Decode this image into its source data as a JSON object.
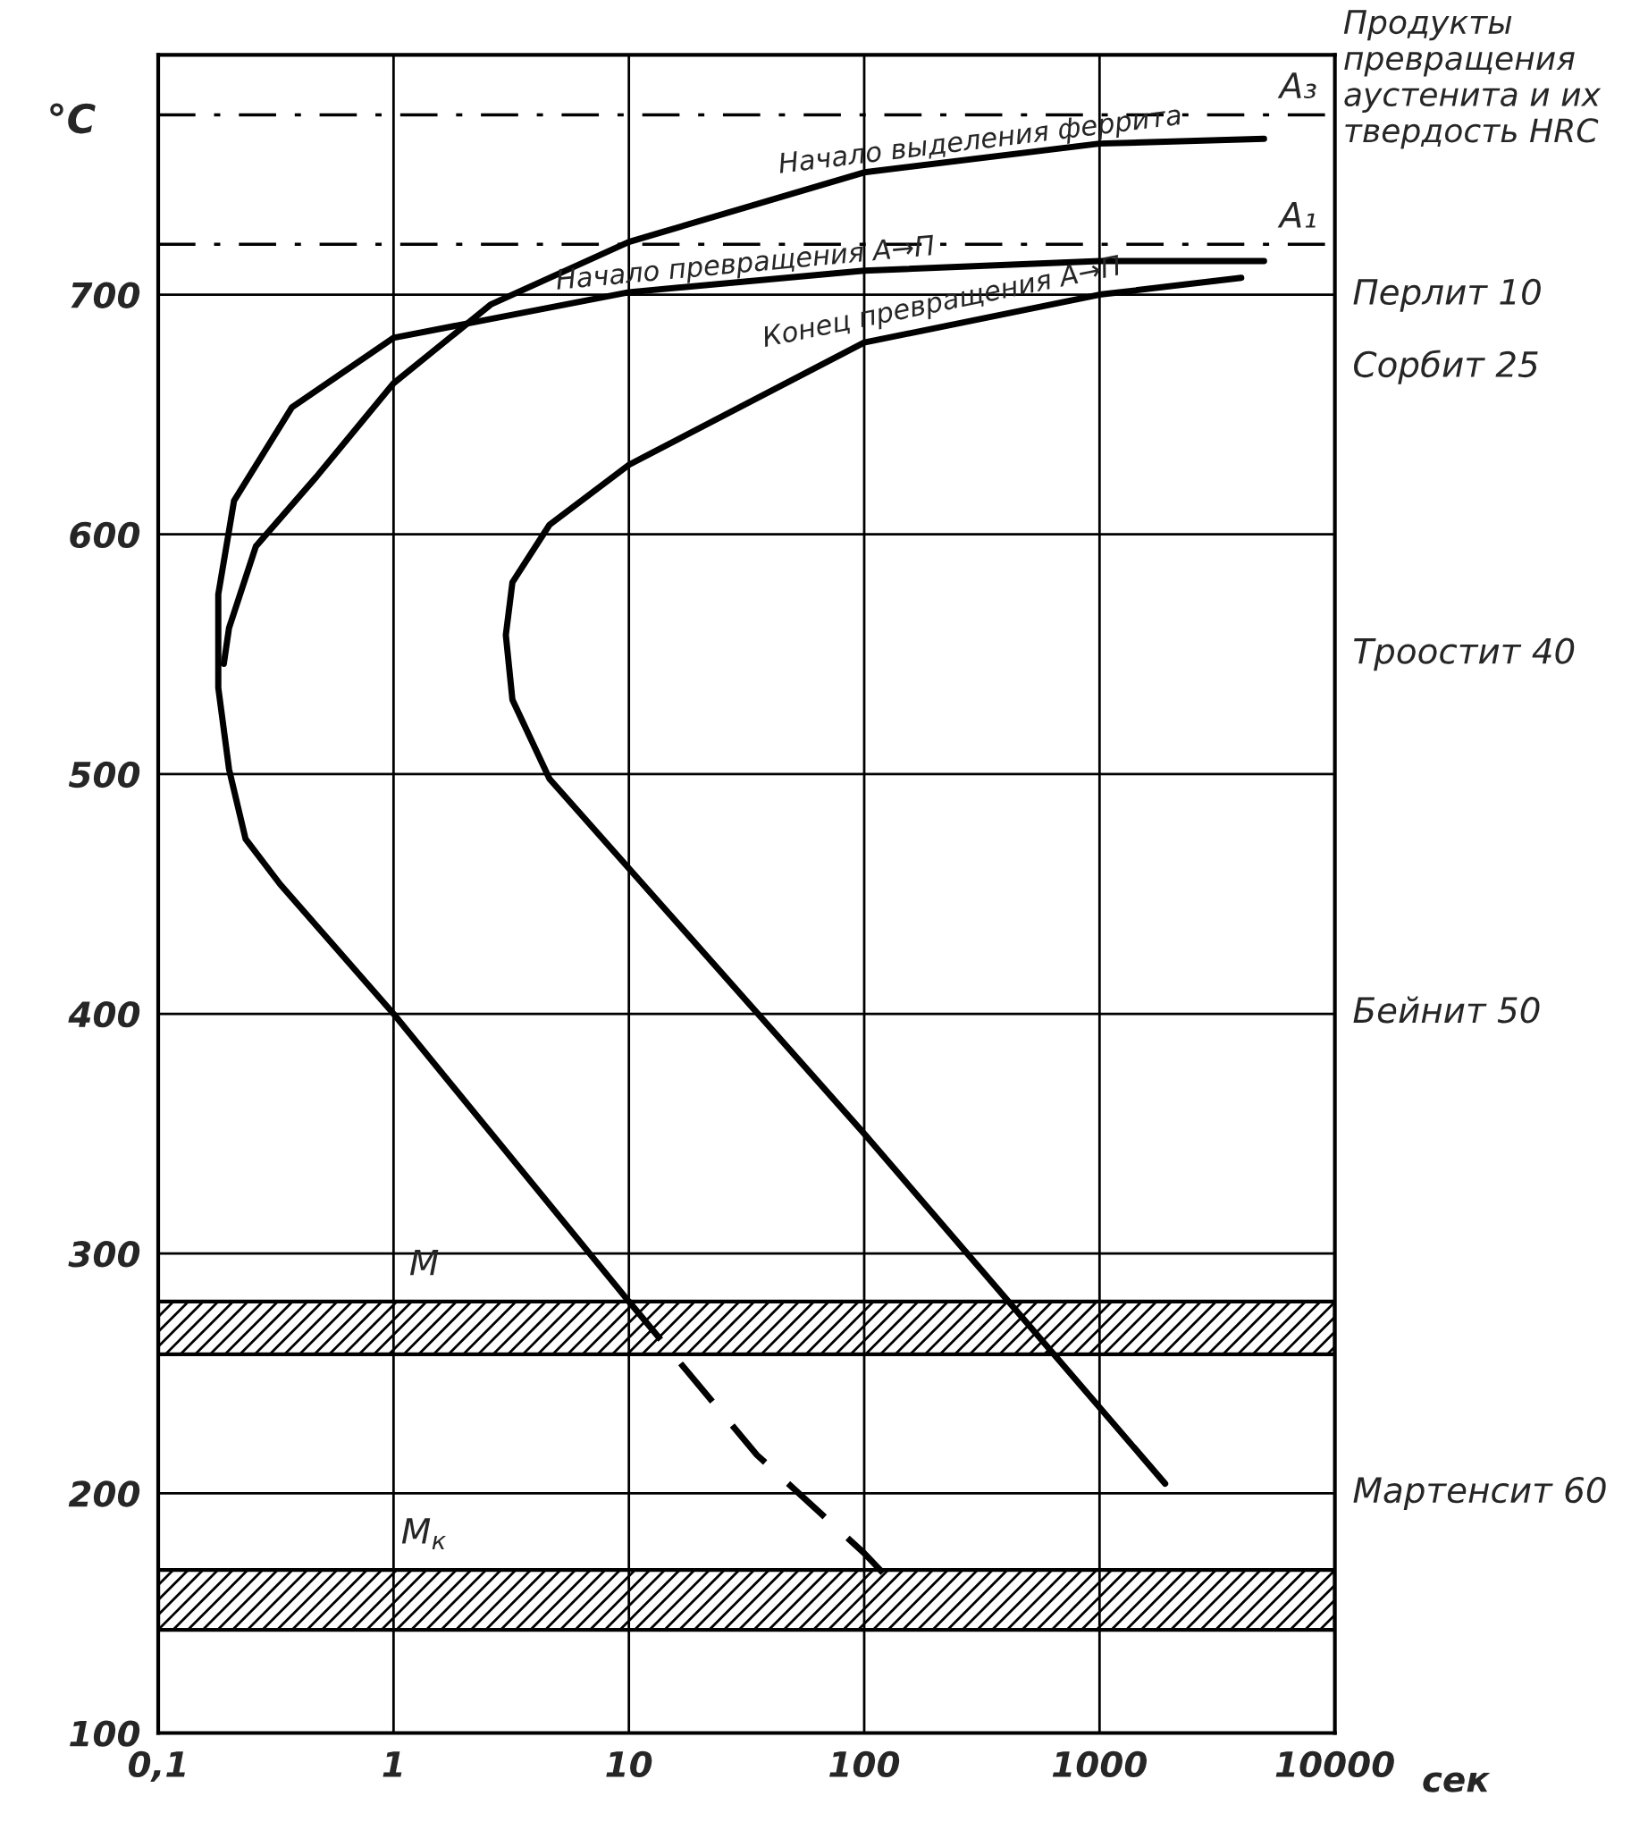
{
  "chart_data": {
    "type": "line",
    "title": "Продукты превращения аустенита и их твердость HRC",
    "xlabel": "сек",
    "ylabel": "°C",
    "log": "x",
    "xlim": [
      0.1,
      10000
    ],
    "ylim": [
      100,
      800
    ],
    "xticks": [
      {
        "value": 0.1,
        "label": "0,1"
      },
      1,
      10,
      100,
      1000,
      {
        "value": 10000,
        "label": "10000"
      }
    ],
    "yticks": [
      100,
      200,
      300,
      400,
      500,
      600,
      700
    ],
    "grid": true,
    "legend": false,
    "marker": "none",
    "series": [
      {
        "name": "Начало выделения феррита",
        "color": "#000000",
        "line_style": "solid",
        "x": [
          5000,
          1000,
          100,
          10,
          2.6,
          1,
          0.47,
          0.26,
          0.2,
          0.19
        ],
        "values": [
          765,
          763,
          751,
          722,
          696,
          663,
          624,
          595,
          561,
          546
        ]
      },
      {
        "name": "Начало превращения А→П",
        "color": "#000000",
        "line_style": "solid",
        "x": [
          5000,
          1000,
          100,
          10,
          1,
          0.37,
          0.21,
          0.18,
          0.18,
          0.2,
          0.235,
          0.33,
          1,
          10
        ],
        "values": [
          714,
          714,
          710,
          701,
          682,
          653,
          614,
          575,
          536,
          502,
          473,
          454,
          400,
          280
        ]
      },
      {
        "color": "#000000",
        "line_style": "dashed",
        "x": [
          10,
          35,
          100,
          125
        ],
        "values": [
          280,
          216,
          175,
          165
        ]
      },
      {
        "name": "Конец превращения А→П",
        "color": "#000000",
        "line_style": "solid",
        "x": [
          4000,
          1000,
          100,
          10,
          4.6,
          3.2,
          3.0,
          3.2,
          4.6,
          100,
          1900
        ],
        "values": [
          707,
          700,
          680,
          629,
          604,
          580,
          558,
          531,
          498,
          350,
          204
        ]
      }
    ],
    "ref_lines": [
      {
        "axis": "y",
        "value": 775,
        "label": "A₃",
        "line_style": "dashed",
        "color": "#000000"
      },
      {
        "axis": "y",
        "value": 721,
        "label": "A₁",
        "line_style": "dashed",
        "color": "#000000"
      }
    ],
    "bands": [
      {
        "axis": "y",
        "from": 258,
        "to": 280,
        "label": "М",
        "color": "#000000"
      },
      {
        "axis": "y",
        "from": 143,
        "to": 168,
        "label": "M$_{к}$",
        "color": "#000000"
      }
    ],
    "annotations": [
      "Перлит 10",
      "Сорбит 25",
      "Троостит 40",
      "Бейнит 50",
      "Мартенсит 60"
    ]
  }
}
